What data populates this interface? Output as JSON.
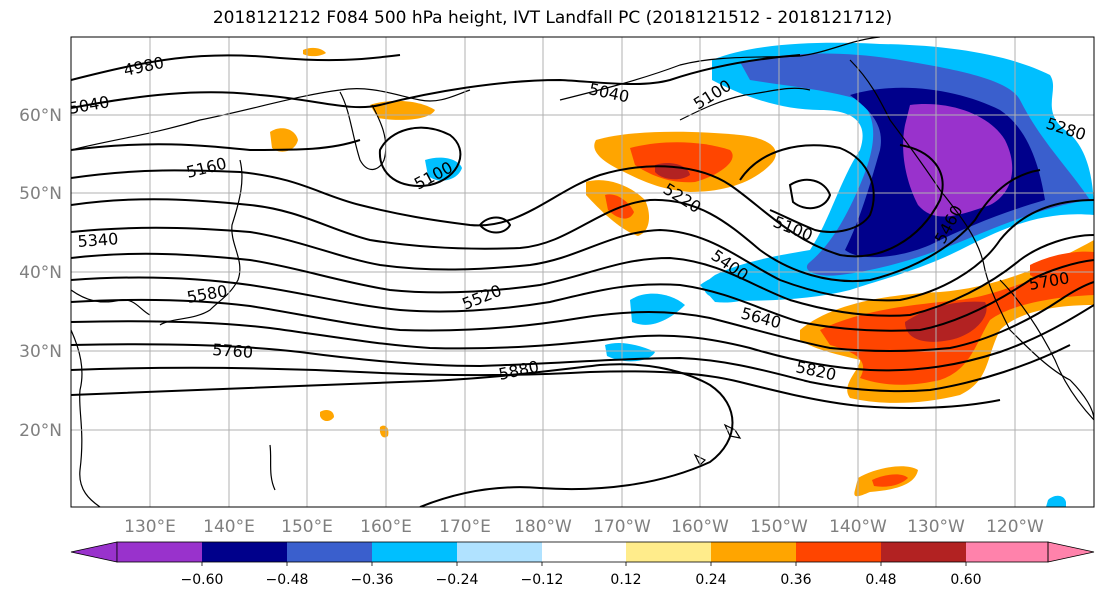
{
  "title": "2018121212 F084 500 hPa height, IVT Landfall PC (2018121512 - 2018121712)",
  "lat_labels": [
    "60°N",
    "50°N",
    "40°N",
    "30°N",
    "20°N"
  ],
  "lon_labels": [
    "130°E",
    "140°E",
    "150°E",
    "160°E",
    "170°E",
    "180°W",
    "170°W",
    "160°W",
    "150°W",
    "140°W",
    "130°W",
    "120°W"
  ],
  "contour_labels": [
    "4980",
    "5040",
    "5040",
    "5100",
    "5100",
    "5100",
    "5160",
    "5220",
    "5340",
    "5400",
    "5460",
    "5520",
    "5580",
    "5640",
    "5700",
    "5760",
    "5820",
    "5880",
    "5280"
  ],
  "colorbar": {
    "ticks": [
      "−0.60",
      "−0.48",
      "−0.36",
      "−0.24",
      "−0.12",
      "0.12",
      "0.24",
      "0.36",
      "0.48",
      "0.60"
    ],
    "colors": [
      "#9932cc",
      "#00008b",
      "#3a5fcd",
      "#00bfff",
      "#b0e2ff",
      "#ffffff",
      "#ffec8b",
      "#ffa500",
      "#ff4500",
      "#b22222",
      "#ff82ab"
    ]
  }
}
